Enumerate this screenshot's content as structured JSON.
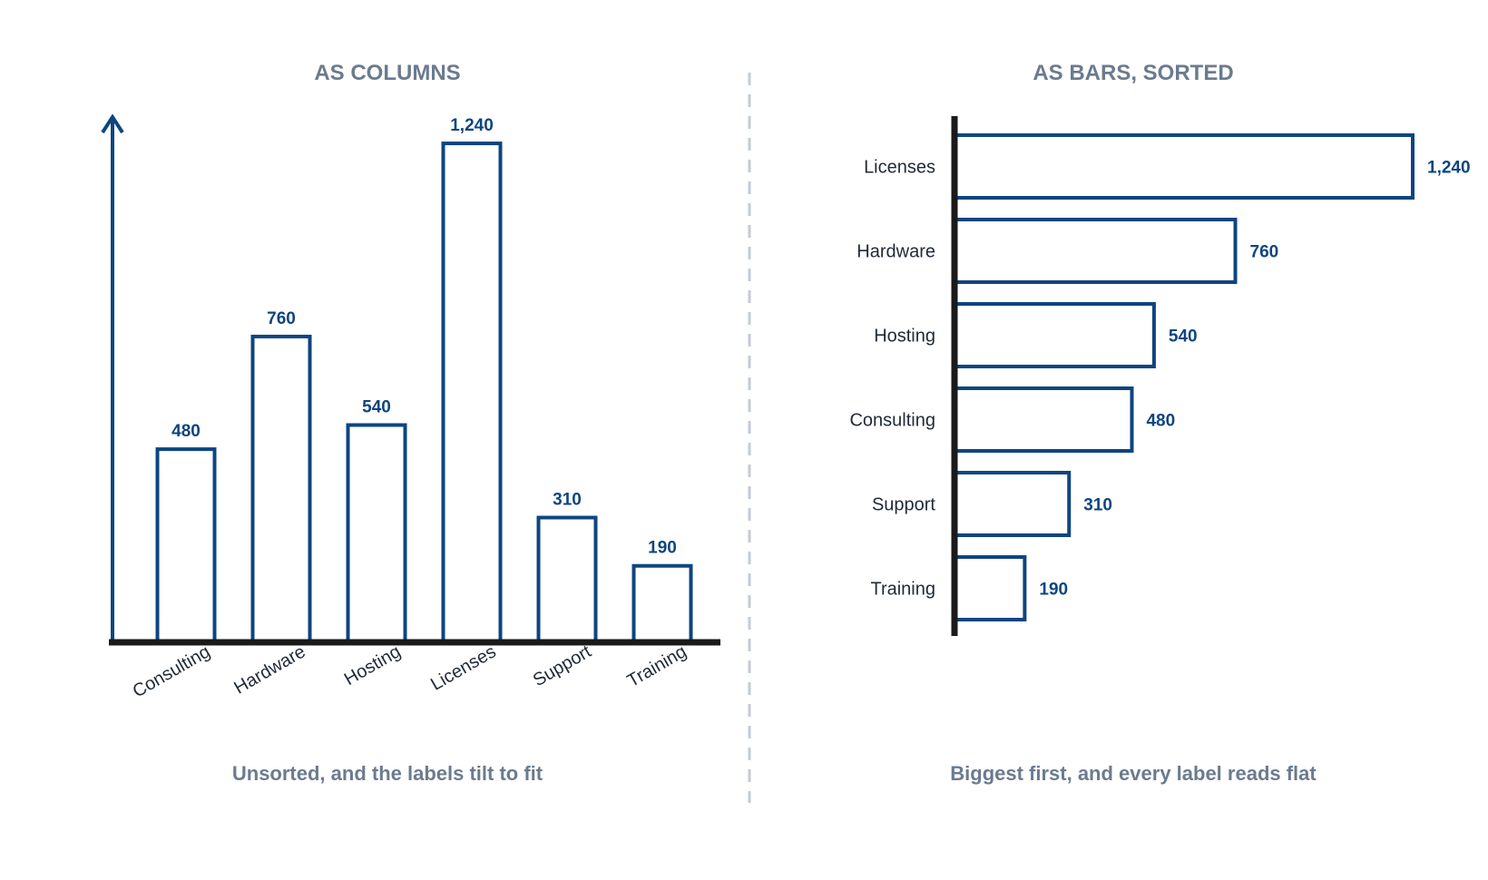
{
  "chart_data": [
    {
      "type": "bar",
      "orientation": "vertical",
      "title": "AS COLUMNS",
      "caption": "Unsorted, and the labels tilt to fit",
      "categories": [
        "Consulting",
        "Hardware",
        "Hosting",
        "Licenses",
        "Support",
        "Training"
      ],
      "values": [
        480,
        760,
        540,
        1240,
        310,
        190
      ],
      "value_labels": [
        "480",
        "760",
        "540",
        "1,240",
        "310",
        "190"
      ],
      "ylim": [
        0,
        1300
      ],
      "grid": false,
      "colors": {
        "bar_stroke": "#0e4580",
        "bar_fill": "#ffffff",
        "axis": "#1a1a1a"
      }
    },
    {
      "type": "bar",
      "orientation": "horizontal",
      "title": "AS BARS, SORTED",
      "caption": "Biggest first, and every label reads flat",
      "categories": [
        "Licenses",
        "Hardware",
        "Hosting",
        "Consulting",
        "Support",
        "Training"
      ],
      "values": [
        1240,
        760,
        540,
        480,
        310,
        190
      ],
      "value_labels": [
        "1,240",
        "760",
        "540",
        "480",
        "310",
        "190"
      ],
      "xlim": [
        0,
        1240
      ],
      "grid": false,
      "colors": {
        "bar_stroke": "#0e4580",
        "bar_fill": "#ffffff",
        "axis": "#1a1a1a"
      }
    }
  ]
}
